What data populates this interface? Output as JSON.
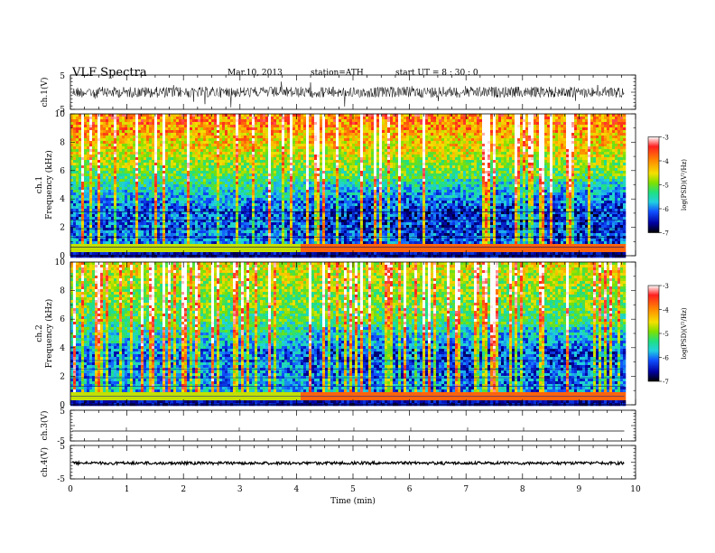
{
  "header": {
    "title": "VLF  Spectra",
    "date": "Mar.10, 2013",
    "station": "station=ATH",
    "start": "start  UT  =   8  : 30 : 0"
  },
  "chart_data": [
    {
      "type": "line",
      "panel": "ch1-waveform",
      "ylabel": "ch.1(V)",
      "yticks": [
        "5",
        "-5"
      ],
      "ylim": [
        -5,
        5
      ],
      "x_range": [
        0,
        9.8
      ],
      "color": "#000000"
    },
    {
      "type": "heatmap",
      "panel": "ch1-spectrogram",
      "ylabel_lines": [
        "ch.1",
        "Frequency  (kHz)"
      ],
      "yticks": [
        0,
        2,
        4,
        6,
        8,
        10
      ],
      "ylim": [
        0,
        10
      ],
      "xlim": [
        0,
        10
      ],
      "data_end_min": 9.8,
      "colorbar": {
        "label": "log(PSD)(V²/Hz)",
        "ticks": [
          -3,
          -4,
          -5,
          -6,
          -7
        ],
        "range": [
          -7,
          -3
        ],
        "colors": [
          "#ffffff",
          "#ff2020",
          "#ff8c00",
          "#f5e000",
          "#7fe000",
          "#20e080",
          "#20d0e0",
          "#1050ff",
          "#0000a0",
          "#000000"
        ]
      }
    },
    {
      "type": "heatmap",
      "panel": "ch2-spectrogram",
      "ylabel_lines": [
        "ch.2",
        "Frequency  (kHz)"
      ],
      "yticks": [
        0,
        2,
        4,
        6,
        8,
        10
      ],
      "ylim": [
        0,
        10
      ],
      "xlim": [
        0,
        10
      ],
      "data_end_min": 9.8,
      "colorbar": {
        "label": "log(PSD)(V²/Hz)",
        "ticks": [
          -3,
          -4,
          -5,
          -6,
          -7
        ],
        "range": [
          -7,
          -3
        ]
      }
    },
    {
      "type": "line",
      "panel": "ch3-waveform",
      "ylabel": "ch.3(V)",
      "yticks": [
        "5",
        "-5"
      ],
      "ylim": [
        -5,
        5
      ],
      "x_range": [
        0,
        9.8
      ],
      "color": "#000000"
    },
    {
      "type": "line",
      "panel": "ch4-waveform",
      "ylabel": "ch.4(V)",
      "yticks": [
        "5",
        "-5"
      ],
      "ylim": [
        -5,
        5
      ],
      "x_range": [
        0,
        9.8
      ],
      "color": "#000000"
    }
  ],
  "xaxis": {
    "label": "Time  (min)",
    "ticks": [
      "0",
      "1",
      "2",
      "3",
      "4",
      "5",
      "6",
      "7",
      "8",
      "9",
      "10"
    ],
    "xlim": [
      0,
      10
    ]
  }
}
